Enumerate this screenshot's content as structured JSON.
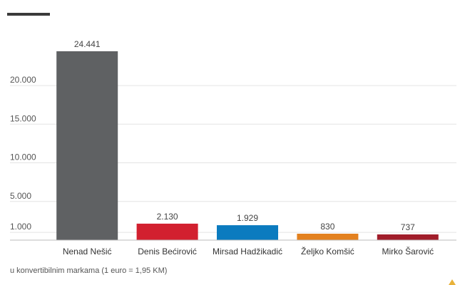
{
  "chart_data": {
    "type": "bar",
    "categories": [
      "Nenad Nešić",
      "Denis Bećirović",
      "Mirsad Hadžikadić",
      "Željko Komšić",
      "Mirko Šarović"
    ],
    "values": [
      24441,
      2130,
      1929,
      830,
      737
    ],
    "value_labels": [
      "24.441",
      "2.130",
      "1.929",
      "830",
      "737"
    ],
    "colors": [
      "#5f6163",
      "#d2202f",
      "#0b7bbf",
      "#e3811f",
      "#a11d2a"
    ],
    "y_ticks": [
      1000,
      5000,
      10000,
      15000,
      20000
    ],
    "y_tick_labels": [
      "1.000",
      "5.000",
      "10.000",
      "15.000",
      "20.000"
    ],
    "ylim": [
      0,
      26000
    ],
    "grid": true,
    "title": "",
    "xlabel": "",
    "ylabel": ""
  },
  "footnote": "u konvertibilnim markama (1 euro = 1,95 KM)"
}
